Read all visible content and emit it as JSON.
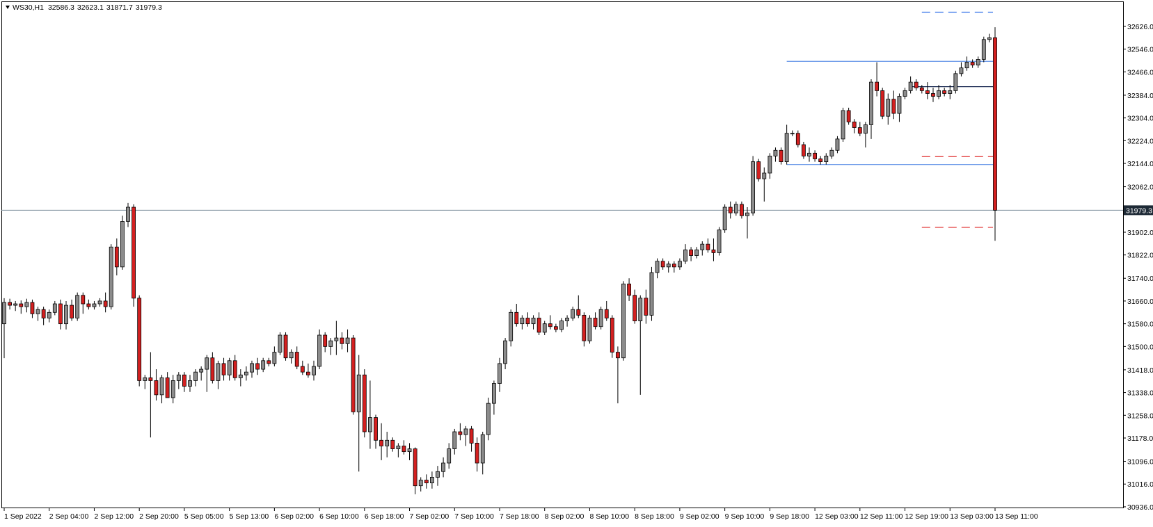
{
  "chart_data": {
    "type": "candlestick",
    "symbol": "WS30,H1",
    "ylim": [
      30931,
      32714
    ],
    "yticks": [
      {
        "value": 32626,
        "label": "32626.0"
      },
      {
        "value": 32546,
        "label": "32546.0"
      },
      {
        "value": 32466,
        "label": "32466.0"
      },
      {
        "value": 32384,
        "label": "32384.0"
      },
      {
        "value": 32304,
        "label": "32304.0"
      },
      {
        "value": 32224,
        "label": "32224.0"
      },
      {
        "value": 32144,
        "label": "32144.0"
      },
      {
        "value": 32062,
        "label": "32062.0"
      },
      {
        "value": 31902,
        "label": "31902.0"
      },
      {
        "value": 31822,
        "label": "31822.0"
      },
      {
        "value": 31740,
        "label": "31740.0"
      },
      {
        "value": 31660,
        "label": "31660.0"
      },
      {
        "value": 31580,
        "label": "31580.0"
      },
      {
        "value": 31500,
        "label": "31500.0"
      },
      {
        "value": 31418,
        "label": "31418.0"
      },
      {
        "value": 31338,
        "label": "31338.0"
      },
      {
        "value": 31258,
        "label": "31258.0"
      },
      {
        "value": 31178,
        "label": "31178.0"
      },
      {
        "value": 31096,
        "label": "31096.0"
      },
      {
        "value": 31016,
        "label": "31016.0"
      },
      {
        "value": 30936,
        "label": "30936.0"
      }
    ],
    "grid": false,
    "up_color": "#8c8c8c",
    "down_color": "#d42020",
    "wick_color": "#000000",
    "price_line_color": "#7a8c99",
    "categories": [
      "1 Sep 2022",
      null,
      null,
      null,
      null,
      null,
      null,
      null,
      "2 Sep 04:00",
      null,
      null,
      null,
      null,
      null,
      null,
      null,
      "2 Sep 12:00",
      null,
      null,
      null,
      null,
      null,
      null,
      null,
      "2 Sep 20:00",
      null,
      null,
      null,
      null,
      null,
      null,
      null,
      "5 Sep 05:00",
      null,
      null,
      null,
      null,
      null,
      null,
      null,
      "5 Sep 13:00",
      null,
      null,
      null,
      null,
      null,
      null,
      null,
      "6 Sep 02:00",
      null,
      null,
      null,
      null,
      null,
      null,
      null,
      "6 Sep 10:00",
      null,
      null,
      null,
      null,
      null,
      null,
      null,
      "6 Sep 18:00",
      null,
      null,
      null,
      null,
      null,
      null,
      null,
      "7 Sep 02:00",
      null,
      null,
      null,
      null,
      null,
      null,
      null,
      "7 Sep 10:00",
      null,
      null,
      null,
      null,
      null,
      null,
      null,
      "7 Sep 18:00",
      null,
      null,
      null,
      null,
      null,
      null,
      null,
      "8 Sep 02:00",
      null,
      null,
      null,
      null,
      null,
      null,
      null,
      "8 Sep 10:00",
      null,
      null,
      null,
      null,
      null,
      null,
      null,
      "8 Sep 18:00",
      null,
      null,
      null,
      null,
      null,
      null,
      null,
      "9 Sep 02:00",
      null,
      null,
      null,
      null,
      null,
      null,
      null,
      "9 Sep 10:00",
      null,
      null,
      null,
      null,
      null,
      null,
      null,
      "9 Sep 18:00",
      null,
      null,
      null,
      null,
      null,
      null,
      null,
      "12 Sep 03:00",
      null,
      null,
      null,
      null,
      null,
      null,
      null,
      "12 Sep 11:00",
      null,
      null,
      null,
      null,
      null,
      null,
      null,
      "12 Sep 19:00",
      null,
      null,
      null,
      null,
      null,
      null,
      null,
      "13 Sep 03:00",
      null,
      null,
      null,
      null,
      null,
      null,
      null,
      "13 Sep 11:00"
    ],
    "ohlc": [
      [
        31580,
        31670,
        31459,
        31655
      ],
      [
        31655,
        31668,
        31630,
        31645
      ],
      [
        31645,
        31660,
        31625,
        31650
      ],
      [
        31650,
        31662,
        31615,
        31640
      ],
      [
        31640,
        31668,
        31620,
        31655
      ],
      [
        31655,
        31665,
        31600,
        31615
      ],
      [
        31615,
        31640,
        31590,
        31630
      ],
      [
        31630,
        31640,
        31575,
        31600
      ],
      [
        31600,
        31630,
        31585,
        31620
      ],
      [
        31620,
        31660,
        31610,
        31650
      ],
      [
        31650,
        31665,
        31560,
        31580
      ],
      [
        31580,
        31660,
        31560,
        31645
      ],
      [
        31645,
        31665,
        31590,
        31600
      ],
      [
        31600,
        31690,
        31590,
        31680
      ],
      [
        31680,
        31690,
        31615,
        31650
      ],
      [
        31650,
        31665,
        31630,
        31640
      ],
      [
        31640,
        31660,
        31630,
        31650
      ],
      [
        31650,
        31670,
        31640,
        31660
      ],
      [
        31660,
        31690,
        31620,
        31640
      ],
      [
        31640,
        31860,
        31630,
        31850
      ],
      [
        31850,
        31880,
        31750,
        31780
      ],
      [
        31780,
        31960,
        31770,
        31940
      ],
      [
        31940,
        32005,
        31920,
        31990
      ],
      [
        31990,
        32000,
        31640,
        31670
      ],
      [
        31670,
        31680,
        31360,
        31380
      ],
      [
        31380,
        31400,
        31350,
        31390
      ],
      [
        31390,
        31480,
        31180,
        31380
      ],
      [
        31380,
        31420,
        31310,
        31330
      ],
      [
        31330,
        31400,
        31300,
        31390
      ],
      [
        31390,
        31410,
        31320,
        31320
      ],
      [
        31320,
        31400,
        31300,
        31380
      ],
      [
        31380,
        31410,
        31350,
        31400
      ],
      [
        31400,
        31410,
        31340,
        31360
      ],
      [
        31360,
        31400,
        31340,
        31380
      ],
      [
        31380,
        31420,
        31360,
        31410
      ],
      [
        31410,
        31430,
        31380,
        31420
      ],
      [
        31420,
        31470,
        31340,
        31460
      ],
      [
        31460,
        31480,
        31370,
        31380
      ],
      [
        31380,
        31450,
        31350,
        31440
      ],
      [
        31440,
        31460,
        31380,
        31400
      ],
      [
        31400,
        31460,
        31380,
        31450
      ],
      [
        31450,
        31470,
        31380,
        31390
      ],
      [
        31390,
        31420,
        31360,
        31400
      ],
      [
        31400,
        31430,
        31380,
        31410
      ],
      [
        31410,
        31450,
        31390,
        31440
      ],
      [
        31440,
        31460,
        31400,
        31420
      ],
      [
        31420,
        31460,
        31410,
        31450
      ],
      [
        31450,
        31460,
        31430,
        31440
      ],
      [
        31440,
        31500,
        31430,
        31480
      ],
      [
        31480,
        31550,
        31470,
        31540
      ],
      [
        31540,
        31550,
        31450,
        31460
      ],
      [
        31460,
        31490,
        31440,
        31480
      ],
      [
        31480,
        31500,
        31420,
        31430
      ],
      [
        31430,
        31450,
        31400,
        31410
      ],
      [
        31410,
        31440,
        31390,
        31400
      ],
      [
        31400,
        31450,
        31380,
        31430
      ],
      [
        31430,
        31560,
        31420,
        31540
      ],
      [
        31540,
        31550,
        31480,
        31500
      ],
      [
        31500,
        31530,
        31470,
        31520
      ],
      [
        31520,
        31590,
        31470,
        31530
      ],
      [
        31530,
        31550,
        31490,
        31510
      ],
      [
        31510,
        31560,
        31480,
        31530
      ],
      [
        31530,
        31540,
        31260,
        31270
      ],
      [
        31270,
        31470,
        31060,
        31400
      ],
      [
        31400,
        31420,
        31180,
        31200
      ],
      [
        31200,
        31380,
        31140,
        31250
      ],
      [
        31250,
        31260,
        31140,
        31170
      ],
      [
        31170,
        31230,
        31100,
        31150
      ],
      [
        31150,
        31200,
        31110,
        31170
      ],
      [
        31170,
        31180,
        31130,
        31140
      ],
      [
        31140,
        31160,
        31110,
        31150
      ],
      [
        31150,
        31170,
        31120,
        31130
      ],
      [
        31130,
        31160,
        31100,
        31140
      ],
      [
        31140,
        31145,
        30980,
        31010
      ],
      [
        31010,
        31040,
        30990,
        31030
      ],
      [
        31030,
        31050,
        31000,
        31020
      ],
      [
        31020,
        31060,
        31000,
        31040
      ],
      [
        31040,
        31080,
        31010,
        31060
      ],
      [
        31060,
        31110,
        31040,
        31090
      ],
      [
        31090,
        31160,
        31070,
        31140
      ],
      [
        31140,
        31210,
        31120,
        31200
      ],
      [
        31200,
        31230,
        31170,
        31190
      ],
      [
        31190,
        31220,
        31150,
        31210
      ],
      [
        31210,
        31220,
        31130,
        31160
      ],
      [
        31160,
        31180,
        31060,
        31090
      ],
      [
        31090,
        31200,
        31050,
        31190
      ],
      [
        31190,
        31320,
        31170,
        31300
      ],
      [
        31300,
        31380,
        31260,
        31370
      ],
      [
        31370,
        31460,
        31340,
        31440
      ],
      [
        31440,
        31530,
        31420,
        31520
      ],
      [
        31520,
        31630,
        31500,
        31620
      ],
      [
        31620,
        31650,
        31570,
        31580
      ],
      [
        31580,
        31610,
        31560,
        31600
      ],
      [
        31600,
        31620,
        31570,
        31580
      ],
      [
        31580,
        31610,
        31560,
        31600
      ],
      [
        31600,
        31620,
        31540,
        31550
      ],
      [
        31550,
        31590,
        31540,
        31580
      ],
      [
        31580,
        31610,
        31560,
        31570
      ],
      [
        31570,
        31580,
        31550,
        31560
      ],
      [
        31560,
        31600,
        31550,
        31590
      ],
      [
        31590,
        31610,
        31570,
        31600
      ],
      [
        31600,
        31640,
        31590,
        31630
      ],
      [
        31630,
        31680,
        31600,
        31610
      ],
      [
        31610,
        31620,
        31500,
        31520
      ],
      [
        31520,
        31610,
        31510,
        31600
      ],
      [
        31600,
        31620,
        31560,
        31570
      ],
      [
        31570,
        31640,
        31560,
        31630
      ],
      [
        31630,
        31660,
        31590,
        31600
      ],
      [
        31600,
        31610,
        31460,
        31480
      ],
      [
        31480,
        31500,
        31300,
        31460
      ],
      [
        31460,
        31730,
        31450,
        31720
      ],
      [
        31720,
        31740,
        31660,
        31680
      ],
      [
        31680,
        31700,
        31580,
        31590
      ],
      [
        31590,
        31680,
        31330,
        31670
      ],
      [
        31670,
        31700,
        31580,
        31610
      ],
      [
        31610,
        31780,
        31590,
        31760
      ],
      [
        31760,
        31810,
        31740,
        31800
      ],
      [
        31800,
        31810,
        31770,
        31780
      ],
      [
        31780,
        31800,
        31760,
        31790
      ],
      [
        31790,
        31800,
        31760,
        31780
      ],
      [
        31780,
        31810,
        31770,
        31800
      ],
      [
        31800,
        31860,
        31790,
        31840
      ],
      [
        31840,
        31850,
        31800,
        31820
      ],
      [
        31820,
        31850,
        31810,
        31840
      ],
      [
        31840,
        31870,
        31820,
        31860
      ],
      [
        31860,
        31880,
        31830,
        31840
      ],
      [
        31840,
        31880,
        31800,
        31830
      ],
      [
        31830,
        31920,
        31820,
        31910
      ],
      [
        31910,
        32000,
        31900,
        31990
      ],
      [
        31990,
        32010,
        31950,
        31970
      ],
      [
        31970,
        32010,
        31960,
        32000
      ],
      [
        32000,
        32010,
        31950,
        31960
      ],
      [
        31960,
        31990,
        31880,
        31970
      ],
      [
        31970,
        32170,
        31960,
        32150
      ],
      [
        32150,
        32160,
        32080,
        32090
      ],
      [
        32090,
        32130,
        32010,
        32110
      ],
      [
        32110,
        32180,
        32090,
        32170
      ],
      [
        32170,
        32200,
        32150,
        32190
      ],
      [
        32190,
        32200,
        32140,
        32150
      ],
      [
        32150,
        32280,
        32140,
        32250
      ],
      [
        32250,
        32260,
        32240,
        32250
      ],
      [
        32250,
        32260,
        32200,
        32210
      ],
      [
        32210,
        32220,
        32160,
        32170
      ],
      [
        32170,
        32200,
        32150,
        32180
      ],
      [
        32180,
        32190,
        32150,
        32160
      ],
      [
        32160,
        32170,
        32140,
        32150
      ],
      [
        32150,
        32180,
        32140,
        32170
      ],
      [
        32170,
        32200,
        32160,
        32190
      ],
      [
        32190,
        32240,
        32180,
        32230
      ],
      [
        32230,
        32340,
        32220,
        32330
      ],
      [
        32330,
        32340,
        32280,
        32290
      ],
      [
        32290,
        32300,
        32250,
        32270
      ],
      [
        32270,
        32290,
        32240,
        32250
      ],
      [
        32250,
        32290,
        32200,
        32280
      ],
      [
        32280,
        32440,
        32230,
        32430
      ],
      [
        32430,
        32500,
        32380,
        32400
      ],
      [
        32400,
        32410,
        32300,
        32310
      ],
      [
        32310,
        32390,
        32280,
        32370
      ],
      [
        32370,
        32400,
        32300,
        32320
      ],
      [
        32320,
        32390,
        32290,
        32380
      ],
      [
        32380,
        32410,
        32370,
        32400
      ],
      [
        32400,
        32450,
        32390,
        32430
      ],
      [
        32430,
        32440,
        32400,
        32410
      ],
      [
        32410,
        32420,
        32390,
        32400
      ],
      [
        32400,
        32430,
        32370,
        32390
      ],
      [
        32390,
        32410,
        32360,
        32380
      ],
      [
        32380,
        32420,
        32370,
        32400
      ],
      [
        32400,
        32410,
        32380,
        32390
      ],
      [
        32390,
        32420,
        32370,
        32400
      ],
      [
        32400,
        32470,
        32390,
        32460
      ],
      [
        32460,
        32500,
        32450,
        32480
      ],
      [
        32480,
        32520,
        32470,
        32500
      ],
      [
        32500,
        32510,
        32480,
        32490
      ],
      [
        32490,
        32520,
        32480,
        32510
      ],
      [
        32510,
        32590,
        32500,
        32580
      ],
      [
        32580,
        32600,
        32570,
        32586.3
      ],
      [
        32586.3,
        32623.1,
        31871.7,
        31979.3
      ]
    ],
    "levels": [
      {
        "value": 32676,
        "color": "#2f6fe8",
        "style": "dashed",
        "start": 163
      },
      {
        "value": 32503,
        "color": "#5b8fe6",
        "style": "solid",
        "start": 139
      },
      {
        "value": 32414,
        "color": "#1e2d55",
        "style": "solid",
        "start": 161
      },
      {
        "value": 32168,
        "color": "#e03030",
        "style": "dashed",
        "start": 163
      },
      {
        "value": 32140,
        "color": "#5b8fe6",
        "style": "solid",
        "start": 139
      },
      {
        "value": 31919,
        "color": "#e03030",
        "style": "dashed",
        "start": 163
      }
    ]
  }
}
